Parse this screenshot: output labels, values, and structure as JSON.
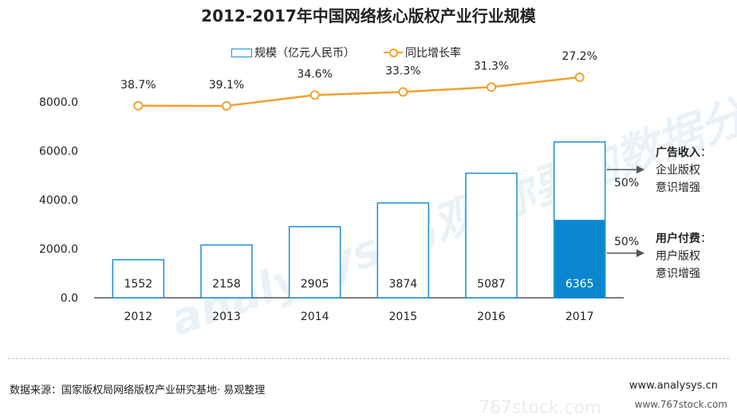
{
  "title": "2012-2017年中国网络核心版权产业行业规模",
  "legend": {
    "bar_label": "规模（亿元人民币）",
    "line_label": "同比增长率"
  },
  "chart_data": {
    "type": "bar",
    "categories": [
      "2012",
      "2013",
      "2014",
      "2015",
      "2016",
      "2017"
    ],
    "series": [
      {
        "name": "规模（亿元人民币）",
        "type": "bar",
        "values": [
          1552,
          2158,
          2905,
          3874,
          5087,
          6365
        ]
      },
      {
        "name": "同比增长率",
        "type": "line",
        "values": [
          38.7,
          39.1,
          34.6,
          33.3,
          31.3,
          27.2
        ],
        "labels": [
          "38.7%",
          "39.1%",
          "34.6%",
          "33.3%",
          "31.3%",
          "27.2%"
        ]
      }
    ],
    "ylim": [
      0,
      8000
    ],
    "yticks": [
      "0.0",
      "2000.0",
      "4000.0",
      "6000.0",
      "8000.0"
    ],
    "split_2017": {
      "top_share": 0.5,
      "bottom_share": 0.5
    },
    "colors": {
      "bar_border": "#1a8fd6",
      "bar_fill_split": "#0a86d0",
      "line": "#f0a22e",
      "axis": "#555555"
    }
  },
  "annotations": {
    "ad": {
      "title": "广告收入",
      "colon": "：",
      "line1": "企业版权",
      "line2": "意识增强",
      "pct": "50%"
    },
    "user": {
      "title": "用户付费",
      "colon": "：",
      "line1": "用户版权",
      "line2": "意识增强",
      "pct": "50%"
    }
  },
  "footer": {
    "source": "数据来源：国家版权局网络版权产业研究基地· 易观整理",
    "site": "www.analysys.cn"
  },
  "watermark": {
    "brand": "analysys 易观",
    "slogan": "你要的数据分析",
    "stock": "www.767stock.com",
    "stock_large": "767stock.com"
  }
}
